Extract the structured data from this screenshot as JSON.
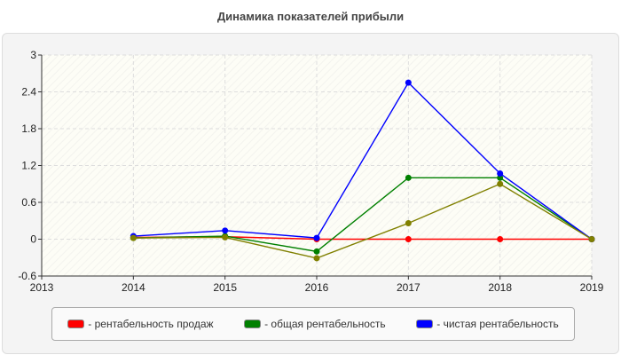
{
  "chart_data": {
    "type": "line",
    "title": "Динамика показателей прибыли",
    "x": [
      2014,
      2015,
      2016,
      2017,
      2018,
      2019
    ],
    "xlim": [
      2013,
      2019
    ],
    "ylim": [
      -0.6,
      3
    ],
    "xticks": [
      "2013",
      "2014",
      "2015",
      "2016",
      "2017",
      "2018",
      "2019"
    ],
    "yticks": [
      "-0.6",
      "0",
      "0.6",
      "1.2",
      "1.8",
      "2.4",
      "3"
    ],
    "grid": true,
    "legend_position": "bottom",
    "series": [
      {
        "name": "- рентабельность продаж",
        "color": "#ff0000",
        "values": [
          0.03,
          0.04,
          0.0,
          0.0,
          0.0,
          0.0
        ]
      },
      {
        "name": "- общая рентабельность",
        "color": "#008000",
        "values": [
          0.02,
          0.05,
          -0.2,
          1.0,
          1.0,
          0.0
        ]
      },
      {
        "name": "- чистая рентабельность",
        "color": "#0000ff",
        "values": [
          0.05,
          0.14,
          0.02,
          2.55,
          1.07,
          0.0
        ]
      },
      {
        "color": "#808000",
        "values": [
          0.02,
          0.03,
          -0.31,
          0.26,
          0.9,
          0.0
        ]
      }
    ]
  }
}
